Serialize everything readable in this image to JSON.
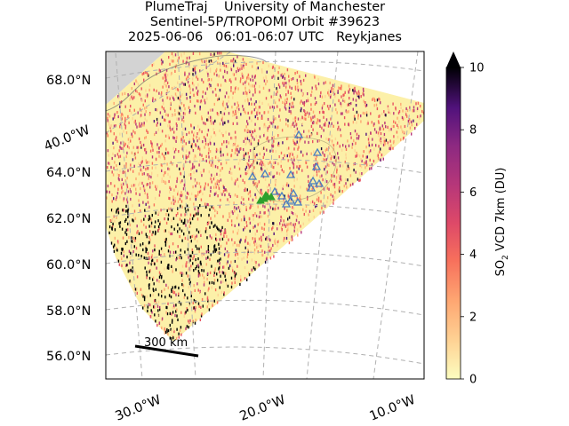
{
  "title": {
    "line1": "PlumeTraj    University of Manchester",
    "line2": "Sentinel-5P/TROPOMI Orbit #39623",
    "line3": "2025-06-06   06:01-06:07 UTC   Reykjanes"
  },
  "map": {
    "lat_labels": [
      "68.0°N",
      "64.0°N",
      "62.0°N",
      "60.0°N",
      "58.0°N",
      "56.0°N"
    ],
    "lon_label_side": "40.0°W",
    "lon_labels_bottom": [
      "30.0°W",
      "20.0°W",
      "10.0°W"
    ],
    "scale_bar": "300 km",
    "colors": {
      "land": "#d3d3d3",
      "gridline": "#b0b0b0",
      "swath_low": "#fcf0a8",
      "triangle_marker": "#4a7fc0",
      "source_marker": "#2ca02c"
    },
    "markers": {
      "triangles": "blue open triangles",
      "source": "green cluster"
    }
  },
  "colorbar": {
    "label_prefix": "SO",
    "label_sub": "2",
    "label_suffix": " VCD 7km (DU)",
    "ticks": [
      "0",
      "2",
      "4",
      "6",
      "8",
      "10"
    ],
    "min": 0,
    "max": 10,
    "extend": "max",
    "colormap": "magma_r"
  }
}
